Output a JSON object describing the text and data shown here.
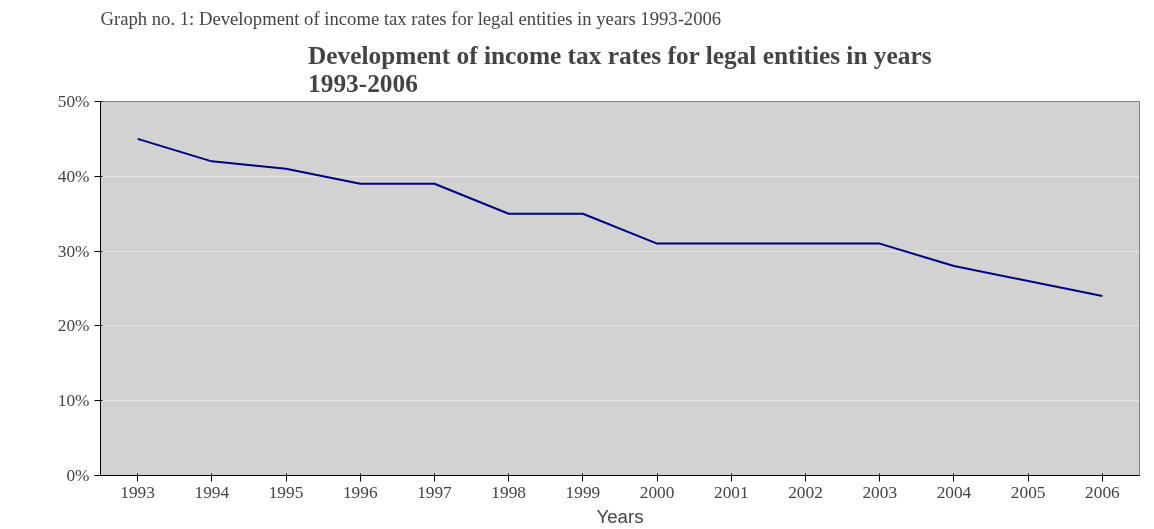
{
  "chart_data": {
    "type": "line",
    "title": "Development of income tax rates for legal entities in years 1993-2006",
    "xlabel": "Years",
    "annotations": [
      "Graph no. 1: Development of income tax rates for legal entities in years 1993-2006"
    ],
    "categories": [
      "1993",
      "1994",
      "1995",
      "1996",
      "1997",
      "1998",
      "1999",
      "2000",
      "2001",
      "2002",
      "2003",
      "2004",
      "2005",
      "2006"
    ],
    "series": [
      {
        "color": "#000080",
        "values": [
          45,
          42,
          41,
          39,
          39,
          35,
          35,
          31,
          31,
          31,
          31,
          28,
          26,
          24
        ]
      }
    ],
    "ylim": [
      0,
      50
    ],
    "yticks": [
      {
        "value": 0,
        "label": "0%"
      },
      {
        "value": 10,
        "label": "10%"
      },
      {
        "value": 20,
        "label": "20%"
      },
      {
        "value": 30,
        "label": "30%"
      },
      {
        "value": 40,
        "label": "40%"
      },
      {
        "value": 50,
        "label": "50%"
      }
    ],
    "grid": "y",
    "marker": "none",
    "line_style": "solid"
  }
}
